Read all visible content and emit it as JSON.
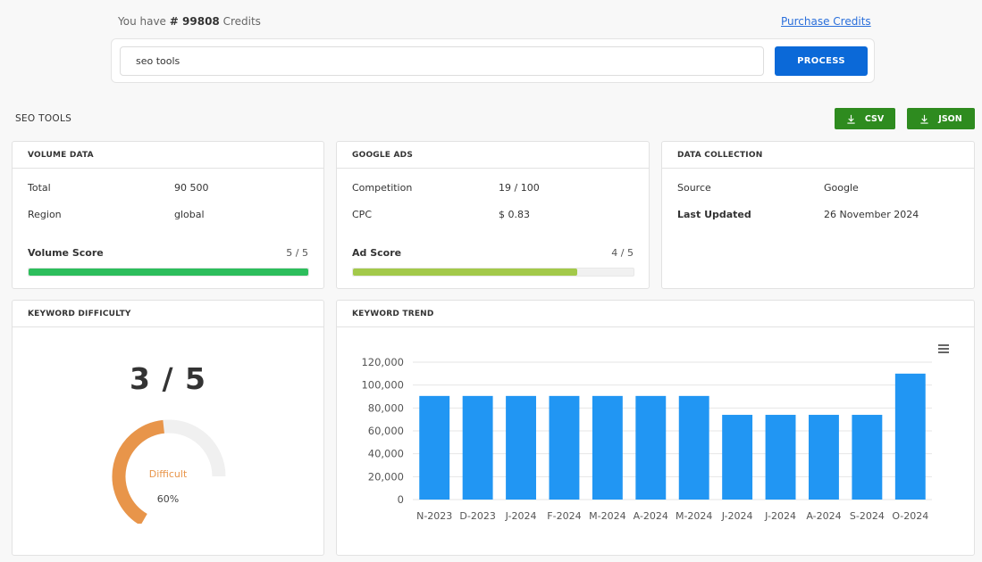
{
  "header": {
    "credits_prefix": "You have",
    "credits_value": "# 99808",
    "credits_suffix": "Credits",
    "purchase_label": "Purchase Credits"
  },
  "search": {
    "value": "seo tools",
    "process_label": "PROCESS"
  },
  "section": {
    "title": "SEO TOOLS",
    "csv_label": "CSV",
    "json_label": "JSON"
  },
  "volume": {
    "title": "VOLUME DATA",
    "total_label": "Total",
    "total_value": "90 500",
    "region_label": "Region",
    "region_value": "global",
    "score_label": "Volume Score",
    "score_value": "5 / 5",
    "score_fraction": 1.0,
    "bar_color": "#2dbe5c"
  },
  "ads": {
    "title": "GOOGLE ADS",
    "competition_label": "Competition",
    "competition_value": "19 / 100",
    "cpc_label": "CPC",
    "cpc_value": "$ 0.83",
    "score_label": "Ad Score",
    "score_value": "4 / 5",
    "score_fraction": 0.8,
    "bar_color": "#a3c94a"
  },
  "collection": {
    "title": "DATA COLLECTION",
    "source_label": "Source",
    "source_value": "Google",
    "updated_label": "Last Updated",
    "updated_value": "26 November 2024"
  },
  "difficulty": {
    "title": "KEYWORD DIFFICULTY",
    "score": "3 / 5",
    "label": "Difficult",
    "percent_text": "60%",
    "percent": 0.6,
    "arc_color": "#e8954a",
    "track_color": "#f0f0f0"
  },
  "trend": {
    "title": "KEYWORD TREND",
    "menu_icon": "hamburger-menu-icon"
  },
  "chart_data": {
    "type": "bar",
    "categories": [
      "N-2023",
      "D-2023",
      "J-2024",
      "F-2024",
      "M-2024",
      "A-2024",
      "M-2024",
      "J-2024",
      "J-2024",
      "A-2024",
      "S-2024",
      "O-2024"
    ],
    "values": [
      90500,
      90500,
      90500,
      90500,
      90500,
      90500,
      90500,
      74000,
      74000,
      74000,
      74000,
      110000
    ],
    "ylim": [
      0,
      120000
    ],
    "yticks": [
      "0",
      "20,000",
      "40,000",
      "60,000",
      "80,000",
      "100,000",
      "120,000"
    ],
    "ytick_values": [
      0,
      20000,
      40000,
      60000,
      80000,
      100000,
      120000
    ],
    "bar_color": "#2196f3",
    "grid": true
  }
}
